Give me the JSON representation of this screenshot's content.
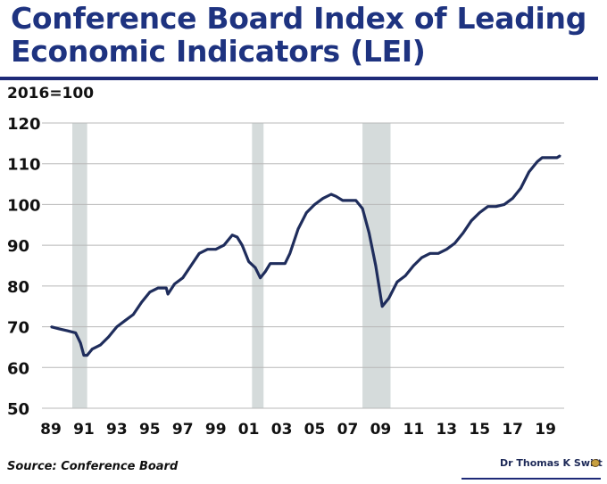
{
  "chart_data": {
    "type": "line",
    "title": "Conference Board Index of Leading Economic Indicators (LEI)",
    "ylabel": "2016=100",
    "ylim": [
      50,
      120
    ],
    "yticks": [
      50,
      60,
      70,
      80,
      90,
      100,
      110,
      120
    ],
    "xlim": [
      1988.5,
      2020.2
    ],
    "xticks": [
      {
        "v": 1989,
        "label": "89"
      },
      {
        "v": 1991,
        "label": "91"
      },
      {
        "v": 1993,
        "label": "93"
      },
      {
        "v": 1995,
        "label": "95"
      },
      {
        "v": 1997,
        "label": "97"
      },
      {
        "v": 1999,
        "label": "99"
      },
      {
        "v": 2001,
        "label": "01"
      },
      {
        "v": 2003,
        "label": "03"
      },
      {
        "v": 2005,
        "label": "05"
      },
      {
        "v": 2007,
        "label": "07"
      },
      {
        "v": 2009,
        "label": "09"
      },
      {
        "v": 2011,
        "label": "11"
      },
      {
        "v": 2013,
        "label": "13"
      },
      {
        "v": 2015,
        "label": "15"
      },
      {
        "v": 2017,
        "label": "17"
      },
      {
        "v": 2019,
        "label": "19"
      }
    ],
    "grid": true,
    "recessions": [
      [
        1990.3,
        1991.2
      ],
      [
        2001.2,
        2001.9
      ],
      [
        2007.9,
        2009.6
      ]
    ],
    "series": [
      {
        "name": "LEI",
        "color": "#1f2d5c",
        "x": [
          1989.0,
          1989.5,
          1990.0,
          1990.5,
          1990.8,
          1991.0,
          1991.2,
          1991.5,
          1992.0,
          1992.5,
          1993.0,
          1993.5,
          1994.0,
          1994.5,
          1995.0,
          1995.5,
          1996.0,
          1996.1,
          1996.5,
          1997.0,
          1997.5,
          1998.0,
          1998.5,
          1999.0,
          1999.5,
          2000.0,
          2000.3,
          2000.6,
          2001.0,
          2001.4,
          2001.7,
          2002.0,
          2002.3,
          2002.7,
          2003.2,
          2003.5,
          2004.0,
          2004.5,
          2005.0,
          2005.5,
          2006.0,
          2006.3,
          2006.7,
          2007.5,
          2007.9,
          2008.3,
          2008.7,
          2009.1,
          2009.5,
          2010.0,
          2010.5,
          2011.0,
          2011.5,
          2012.0,
          2012.5,
          2013.0,
          2013.5,
          2014.0,
          2014.5,
          2015.0,
          2015.5,
          2016.0,
          2016.5,
          2017.0,
          2017.5,
          2018.0,
          2018.5,
          2018.8,
          2019.3,
          2019.7,
          2019.9
        ],
        "y": [
          70,
          69.5,
          69,
          68.5,
          66,
          63,
          63,
          64.5,
          65.5,
          67.5,
          70,
          71.5,
          73,
          76,
          78.5,
          79.5,
          79.5,
          78,
          80.5,
          82,
          85,
          88,
          89,
          89,
          90,
          92.5,
          92,
          90,
          86,
          84.5,
          82,
          83.5,
          85.5,
          85.5,
          85.5,
          88,
          94,
          98,
          100,
          101.5,
          102.5,
          102,
          101,
          101,
          99,
          93,
          85,
          75,
          77,
          81,
          82.5,
          85,
          87,
          88,
          88,
          89,
          90.5,
          93,
          96,
          98,
          99.5,
          99.5,
          100,
          101.5,
          104,
          108,
          110.5,
          111.5,
          111.5,
          111.5,
          112
        ]
      }
    ]
  },
  "header": {
    "title_line1": "Conference Board Index of Leading",
    "title_line2": "Economic Indicators (LEI)",
    "unit": "2016=100"
  },
  "footer": {
    "source": "Source: Conference Board",
    "author": "Dr Thomas K Swift"
  }
}
